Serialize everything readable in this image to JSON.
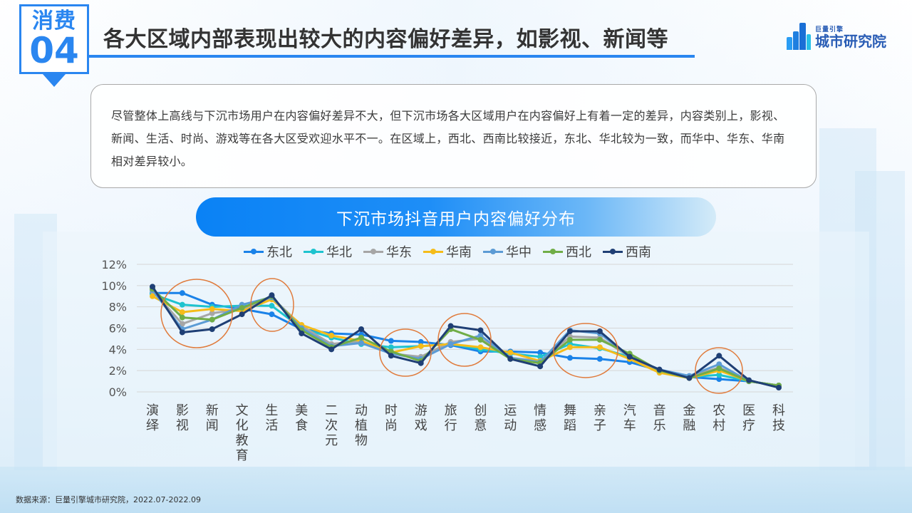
{
  "badge": {
    "label": "消费",
    "number": "04"
  },
  "header": {
    "title": "各大区域内部表现出较大的内容偏好差异，如影视、新闻等"
  },
  "logo": {
    "sub": "巨量引擎",
    "main": "城市研究院",
    "icon": "city-buildings-icon"
  },
  "summary": {
    "text": "尽管整体上高线与下沉市场用户在内容偏好差异不大，但下沉市场各大区域用户在内容偏好上有着一定的差异，内容类别上，影视、新闻、生活、时尚、游戏等在各大区受欢迎水平不一。在区域上，西北、西南比较接近，东北、华北较为一致，而华中、华东、华南相对差异较小。"
  },
  "chart_title": "下沉市场抖音用户内容偏好分布",
  "source": "数据来源：巨量引擎城市研究院，2022.07-2022.09",
  "colors": {
    "accent": "#2a86f0",
    "highlight_circle": "#e07b3c"
  },
  "chart_data": {
    "type": "line",
    "title": "下沉市场抖音用户内容偏好分布",
    "xlabel": "",
    "ylabel": "",
    "ylim": [
      0,
      12
    ],
    "yticks": [
      "0%",
      "2%",
      "4%",
      "6%",
      "8%",
      "10%",
      "12%"
    ],
    "grid": true,
    "legend_position": "top",
    "categories": [
      "演绎",
      "影视",
      "新闻",
      "文化教育",
      "生活",
      "美食",
      "二次元",
      "动植物",
      "时尚",
      "游戏",
      "旅行",
      "创意",
      "运动",
      "情感",
      "舞蹈",
      "亲子",
      "汽车",
      "音乐",
      "金融",
      "农村",
      "医疗",
      "科技"
    ],
    "series": [
      {
        "name": "东北",
        "color": "#1a82e8",
        "values": [
          9.3,
          9.3,
          8.2,
          7.8,
          7.3,
          5.9,
          5.5,
          5.4,
          4.8,
          4.7,
          4.4,
          3.8,
          3.8,
          3.7,
          3.2,
          3.1,
          2.8,
          2.0,
          1.4,
          1.2,
          1.0,
          0.6
        ]
      },
      {
        "name": "华北",
        "color": "#1ec3cf",
        "values": [
          9.2,
          8.2,
          8.0,
          8.1,
          8.1,
          6.0,
          5.1,
          4.5,
          4.2,
          4.3,
          4.5,
          4.0,
          3.6,
          3.3,
          4.5,
          4.1,
          3.3,
          2.0,
          1.4,
          1.6,
          1.0,
          0.6
        ]
      },
      {
        "name": "华东",
        "color": "#a6a6a6",
        "values": [
          9.5,
          6.4,
          7.4,
          7.8,
          8.9,
          6.2,
          4.5,
          4.8,
          3.6,
          3.3,
          4.7,
          5.0,
          3.2,
          2.9,
          5.2,
          5.1,
          3.3,
          2.0,
          1.4,
          2.3,
          1.0,
          0.6
        ]
      },
      {
        "name": "华南",
        "color": "#f5bc1a",
        "values": [
          9.0,
          7.5,
          7.8,
          7.6,
          8.7,
          6.3,
          5.3,
          4.8,
          3.7,
          4.3,
          4.5,
          4.2,
          3.7,
          2.9,
          4.2,
          4.2,
          3.1,
          1.8,
          1.3,
          2.0,
          1.0,
          0.6
        ]
      },
      {
        "name": "华中",
        "color": "#5b9bd5",
        "values": [
          9.6,
          5.9,
          6.8,
          8.2,
          8.9,
          6.0,
          4.3,
          4.6,
          3.6,
          3.1,
          4.5,
          5.3,
          3.2,
          2.8,
          5.8,
          5.5,
          3.3,
          2.1,
          1.5,
          2.6,
          1.0,
          0.6
        ]
      },
      {
        "name": "西北",
        "color": "#70ad47",
        "values": [
          9.7,
          7.0,
          6.8,
          7.9,
          9.0,
          5.8,
          4.2,
          5.1,
          3.8,
          2.9,
          5.9,
          4.9,
          3.1,
          2.7,
          4.9,
          4.9,
          3.6,
          2.0,
          1.3,
          2.2,
          1.0,
          0.6
        ]
      },
      {
        "name": "西南",
        "color": "#1f3f75",
        "values": [
          9.9,
          5.6,
          5.9,
          7.3,
          9.1,
          5.5,
          4.0,
          5.9,
          3.4,
          2.7,
          6.2,
          5.8,
          3.1,
          2.4,
          5.7,
          5.7,
          3.3,
          2.1,
          1.3,
          3.4,
          1.1,
          0.4
        ]
      }
    ],
    "annotations": [
      {
        "type": "circle",
        "around": [
          "影视",
          "新闻"
        ]
      },
      {
        "type": "circle",
        "around": [
          "生活"
        ]
      },
      {
        "type": "circle",
        "around": [
          "时尚",
          "游戏"
        ]
      },
      {
        "type": "circle",
        "around": [
          "旅行",
          "创意"
        ]
      },
      {
        "type": "circle",
        "around": [
          "舞蹈",
          "亲子"
        ]
      },
      {
        "type": "circle",
        "around": [
          "农村"
        ]
      }
    ]
  }
}
